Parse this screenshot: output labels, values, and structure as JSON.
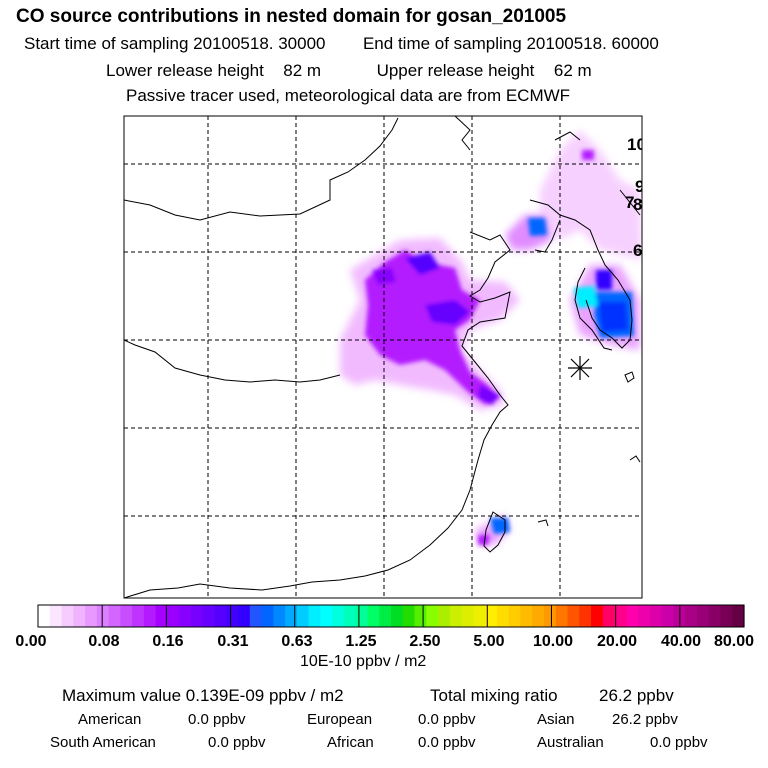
{
  "header": {
    "title": "CO  source contributions in nested domain for gosan_201005",
    "start_label": "Start time of sampling",
    "start_value": "20100518. 30000",
    "end_label": "End time of sampling",
    "end_value": "20100518. 60000",
    "lower_label": "Lower release height",
    "lower_value": "82 m",
    "upper_label": "Upper release height",
    "upper_value": "62 m",
    "note": "Passive tracer used, meteorological data are from ECMWF"
  },
  "map": {
    "edge_labels": [
      "10",
      "9",
      "7",
      "8",
      "6"
    ]
  },
  "colorbar": {
    "unit": "10E-10 ppbv / m2",
    "tick_labels": [
      "0.00",
      "0.08",
      "0.16",
      "0.31",
      "0.63",
      "1.25",
      "2.50",
      "5.00",
      "10.00",
      "20.00",
      "40.00",
      "80.00"
    ],
    "colors": [
      "#ffffff",
      "#fbe6ff",
      "#f6ccff",
      "#f0b3ff",
      "#e799ff",
      "#dd80ff",
      "#d266ff",
      "#c84dff",
      "#be33ff",
      "#b31aff",
      "#a600ff",
      "#9900ff",
      "#8800ff",
      "#7700ff",
      "#6600ff",
      "#5500ff",
      "#4400ff",
      "#3300ff",
      "#2255ff",
      "#0066ff",
      "#0088ff",
      "#00aaff",
      "#00ccff",
      "#00eeff",
      "#00ffff",
      "#00ffdd",
      "#00ffbb",
      "#00ff99",
      "#00ff66",
      "#00ee44",
      "#00dd22",
      "#22dd00",
      "#55ee00",
      "#88ff00",
      "#aaee00",
      "#ccee00",
      "#ddee00",
      "#eeee00",
      "#ffee00",
      "#ffdd00",
      "#ffcc00",
      "#ffbb00",
      "#ffaa00",
      "#ff9900",
      "#ff7700",
      "#ff5500",
      "#ff3300",
      "#ff0000",
      "#ff0066",
      "#ff0088",
      "#ff00aa",
      "#ee00aa",
      "#dd00aa",
      "#cc00aa",
      "#bb0099",
      "#aa0088",
      "#990077",
      "#880066",
      "#770055",
      "#660044"
    ]
  },
  "stats": {
    "max_label": "Maximum value",
    "max_value": "0.139E-09 ppbv / m2",
    "total_label": "Total mixing ratio",
    "total_value": "26.2 ppbv",
    "american_label": "American",
    "american_value": "0.0 ppbv",
    "european_label": "European",
    "european_value": "0.0 ppbv",
    "asian_label": "Asian",
    "asian_value": "26.2 ppbv",
    "south_american_label": "South American",
    "south_american_value": "0.0 ppbv",
    "african_label": "African",
    "african_value": "0.0 ppbv",
    "australian_label": "Australian",
    "australian_value": "0.0 ppbv"
  }
}
